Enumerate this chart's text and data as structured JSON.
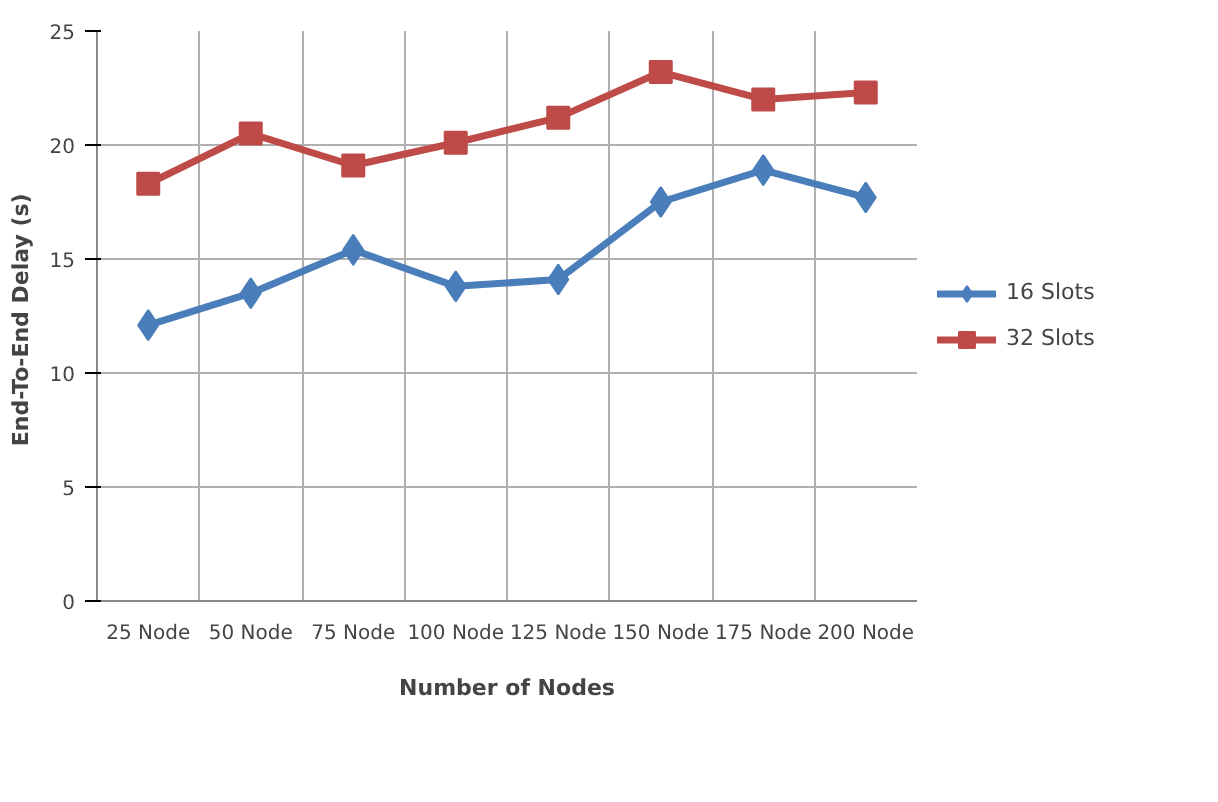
{
  "chart_data": {
    "type": "line",
    "xlabel": "Number of Nodes",
    "ylabel": "End-To-End  Delay (s)",
    "categories": [
      "25 Node",
      "50 Node",
      "75 Node",
      "100 Node",
      "125 Node",
      "150 Node",
      "175 Node",
      "200 Node"
    ],
    "series": [
      {
        "name": "16 Slots",
        "color": "#4a7ebb",
        "marker": "diamond",
        "values": [
          12.1,
          13.5,
          15.4,
          13.8,
          14.1,
          17.5,
          18.9,
          17.7
        ]
      },
      {
        "name": "32 Slots",
        "color": "#be4b48",
        "marker": "square",
        "values": [
          18.3,
          20.5,
          19.1,
          20.1,
          21.2,
          23.2,
          22.0,
          22.3
        ]
      }
    ],
    "ylim": [
      0,
      25
    ],
    "yticks": [
      0,
      5,
      10,
      15,
      20,
      25
    ],
    "grid": true,
    "legend": "right",
    "line_style": "solid"
  }
}
